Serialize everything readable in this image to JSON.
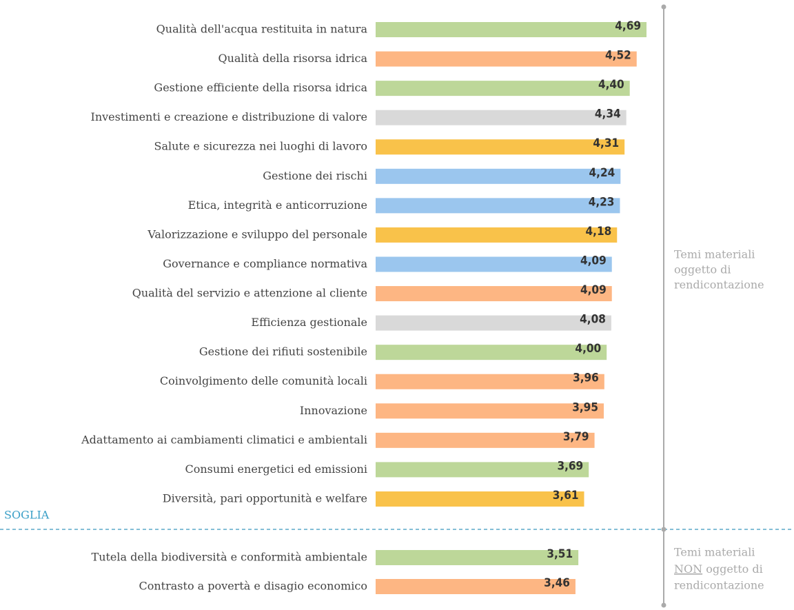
{
  "chart_data": {
    "type": "bar",
    "threshold_label": "SOGLIA",
    "groups": [
      {
        "label": [
          "Temi materiali",
          "oggetto di",
          "rendicontazione"
        ],
        "categories": [
          "Qualità dell'acqua restituita in natura",
          "Qualità della risorsa idrica",
          "Gestione efficiente della risorsa idrica",
          "Investimenti e creazione e distribuzione di valore",
          "Salute e sicurezza nei luoghi di lavoro",
          "Gestione dei rischi",
          "Etica, integrità e anticorruzione",
          "Valorizzazione e sviluppo del personale",
          "Governance e compliance normativa",
          "Qualità del servizio e attenzione al cliente",
          "Efficienza gestionale",
          "Gestione dei rifiuti sostenibile",
          "Coinvolgimento delle comunità locali",
          "Innovazione",
          "Adattamento ai cambiamenti climatici e ambientali",
          "Consumi energetici ed emissioni",
          "Diversità, pari opportunità e welfare"
        ],
        "values": [
          4.69,
          4.52,
          4.4,
          4.34,
          4.31,
          4.24,
          4.23,
          4.18,
          4.09,
          4.09,
          4.08,
          4.0,
          3.96,
          3.95,
          3.79,
          3.69,
          3.61
        ],
        "value_labels": [
          "4,69",
          "4,52",
          "4,40",
          "4,34",
          "4,31",
          "4,24",
          "4,23",
          "4,18",
          "4,09",
          "4,09",
          "4,08",
          "4,00",
          "3,96",
          "3,95",
          "3,79",
          "3,69",
          "3,61"
        ],
        "colors": [
          "#bdd799",
          "#fdb683",
          "#bdd799",
          "#d9d9d9",
          "#f9c24a",
          "#9bc6ee",
          "#9bc6ee",
          "#f9c24a",
          "#9bc6ee",
          "#fdb683",
          "#d9d9d9",
          "#bdd799",
          "#fdb683",
          "#fdb683",
          "#fdb683",
          "#bdd799",
          "#f9c24a"
        ]
      },
      {
        "label": [
          "Temi materiali",
          "NON",
          " oggetto di",
          "rendicontazione"
        ],
        "categories": [
          "Tutela della biodiversità e conformità ambientale",
          "Contrasto a povertà e disagio economico"
        ],
        "values": [
          3.51,
          3.46
        ],
        "value_labels": [
          "3,51",
          "3,46"
        ],
        "colors": [
          "#bdd799",
          "#fdb683"
        ]
      }
    ]
  }
}
